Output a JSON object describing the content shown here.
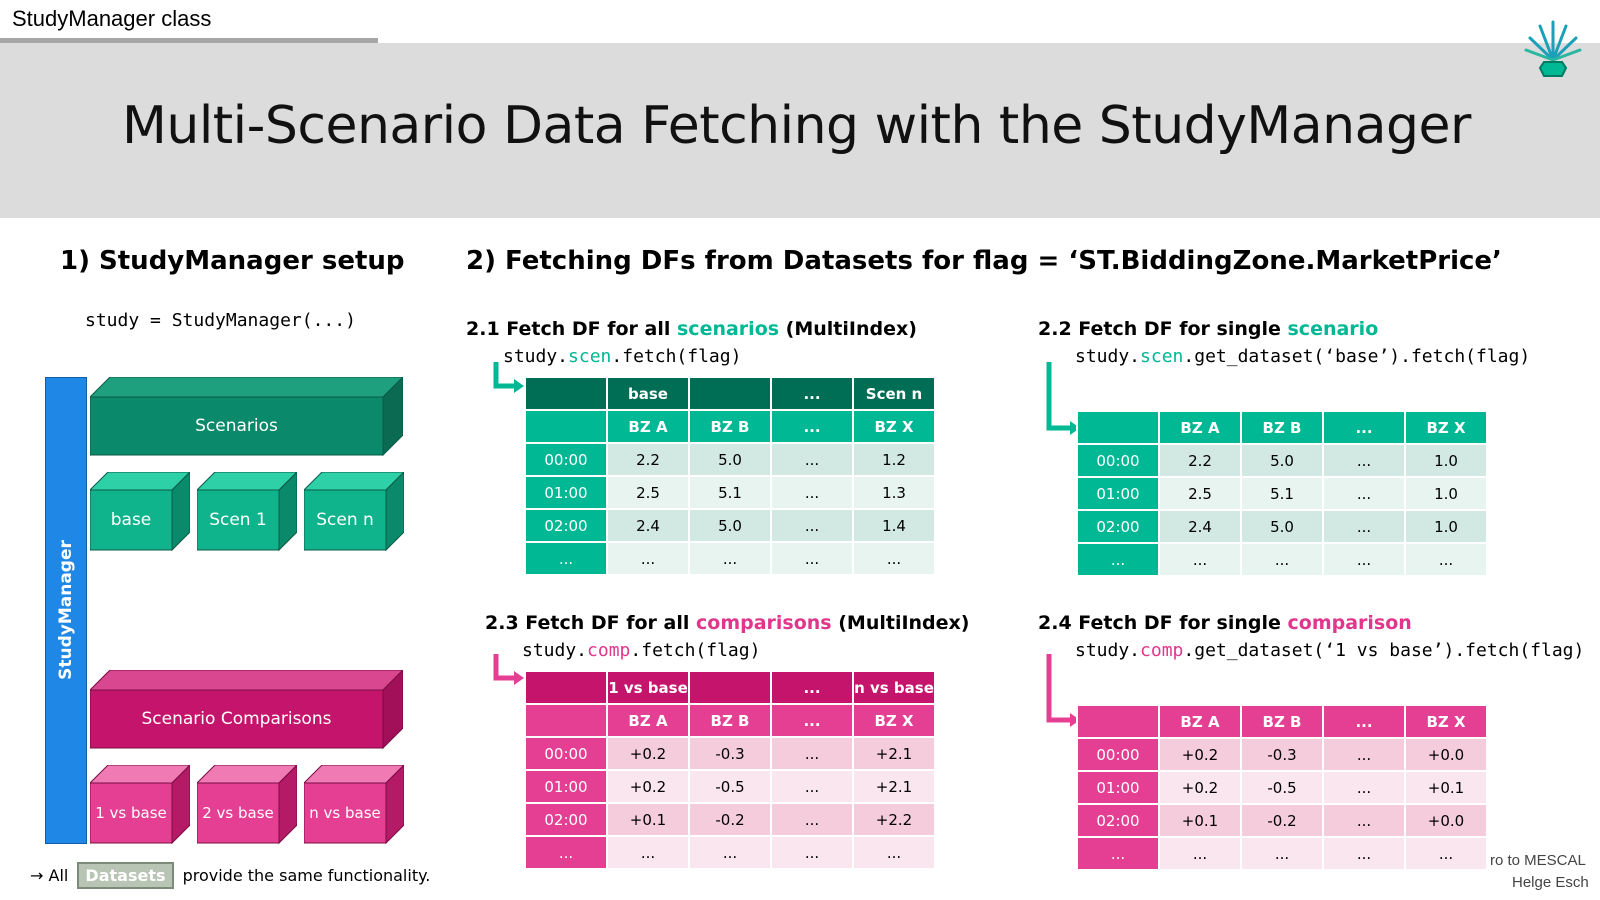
{
  "header": {
    "section_tab": "StudyManager class",
    "title": "Multi-Scenario Data Fetching with the StudyManager"
  },
  "setup": {
    "heading": "1) StudyManager setup",
    "code": "study = StudyManager(...)",
    "side_label": "StudyManager",
    "scenarios_label": "Scenarios",
    "scenario_items": [
      "base",
      "Scen 1",
      "Scen n"
    ],
    "comparisons_label": "Scenario Comparisons",
    "comparison_items": [
      "1 vs base",
      "2 vs base",
      "n vs base"
    ],
    "footer_arrow": "→ All",
    "footer_badge": "Datasets",
    "footer_text": "provide the same functionality."
  },
  "fetching": {
    "heading": "2) Fetching DFs from Datasets for  flag = ‘ST.BiddingZone.MarketPrice’",
    "s21": {
      "title_pre": "2.1 Fetch DF for all ",
      "title_hl": "scenarios",
      "title_post": " (MultiIndex)",
      "code_pre": "study.",
      "code_hl": "scen",
      "code_post": ".fetch(flag)",
      "top_header": [
        "",
        "base",
        "",
        "...",
        "Scen n"
      ],
      "col_header": [
        "",
        "BZ A",
        "BZ B",
        "...",
        "BZ X"
      ],
      "rows": [
        [
          "00:00",
          "2.2",
          "5.0",
          "...",
          "1.2"
        ],
        [
          "01:00",
          "2.5",
          "5.1",
          "...",
          "1.3"
        ],
        [
          "02:00",
          "2.4",
          "5.0",
          "...",
          "1.4"
        ],
        [
          "...",
          "...",
          "...",
          "...",
          "..."
        ]
      ]
    },
    "s22": {
      "title_pre": "2.2 Fetch DF for single ",
      "title_hl": "scenario",
      "code_pre": "study.",
      "code_hl": "scen",
      "code_post": ".get_dataset(‘base’).fetch(flag)",
      "col_header": [
        "",
        "BZ A",
        "BZ B",
        "...",
        "BZ X"
      ],
      "rows": [
        [
          "00:00",
          "2.2",
          "5.0",
          "...",
          "1.0"
        ],
        [
          "01:00",
          "2.5",
          "5.1",
          "...",
          "1.0"
        ],
        [
          "02:00",
          "2.4",
          "5.0",
          "...",
          "1.0"
        ],
        [
          "...",
          "...",
          "...",
          "...",
          "..."
        ]
      ]
    },
    "s23": {
      "title_pre": "2.3 Fetch DF for all ",
      "title_hl": "comparisons",
      "title_post": " (MultiIndex)",
      "code_pre": "study.",
      "code_hl": "comp",
      "code_post": ".fetch(flag)",
      "top_header": [
        "",
        "1 vs base",
        "",
        "...",
        "n vs base"
      ],
      "col_header": [
        "",
        "BZ A",
        "BZ B",
        "...",
        "BZ X"
      ],
      "rows": [
        [
          "00:00",
          "+0.2",
          "-0.3",
          "...",
          "+2.1"
        ],
        [
          "01:00",
          "+0.2",
          "-0.5",
          "...",
          "+2.1"
        ],
        [
          "02:00",
          "+0.1",
          "-0.2",
          "...",
          "+2.2"
        ],
        [
          "...",
          "...",
          "...",
          "...",
          "..."
        ]
      ]
    },
    "s24": {
      "title_pre": "2.4 Fetch DF for single ",
      "title_hl": "comparison",
      "code_pre": "study.",
      "code_hl": "comp",
      "code_post": ".get_dataset(‘1 vs base’).fetch(flag)",
      "col_header": [
        "",
        "BZ A",
        "BZ B",
        "...",
        "BZ X"
      ],
      "rows": [
        [
          "00:00",
          "+0.2",
          "-0.3",
          "...",
          "+0.0"
        ],
        [
          "01:00",
          "+0.2",
          "-0.5",
          "...",
          "+0.1"
        ],
        [
          "02:00",
          "+0.1",
          "-0.2",
          "...",
          "+0.0"
        ],
        [
          "...",
          "...",
          "...",
          "...",
          "..."
        ]
      ]
    }
  },
  "footer": {
    "line1": "ro to MESCAL",
    "line2": "Helge Esch"
  },
  "colors": {
    "teal_dark": "#006e55",
    "teal": "#00b894",
    "pink_dark": "#c5146b",
    "pink": "#e53f93",
    "blue": "#1f87e5"
  }
}
